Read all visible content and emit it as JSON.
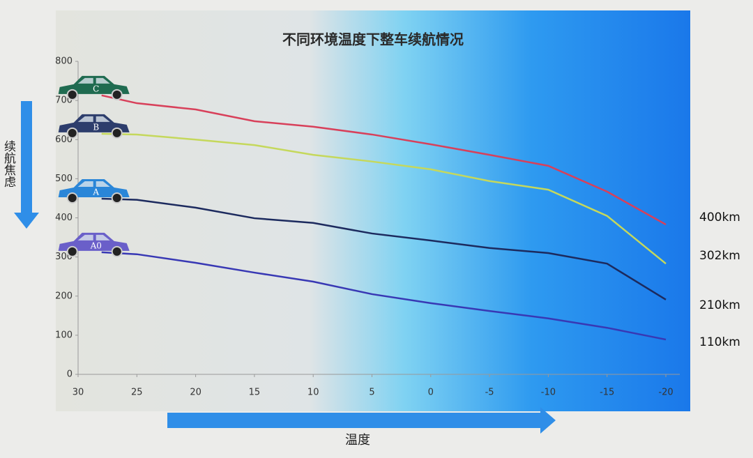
{
  "chart_data": {
    "type": "line",
    "title": "不同环境温度下整车续航情况",
    "x_label": "温度",
    "y_label": "续航焦虑",
    "x": [
      28,
      25,
      20,
      15,
      10,
      5,
      0,
      -5,
      -10,
      -15,
      -20
    ],
    "xlim": [
      30,
      -20
    ],
    "xticks": [
      30,
      25,
      20,
      15,
      10,
      5,
      0,
      -5,
      -10,
      -15,
      -20
    ],
    "ylim": [
      0,
      800
    ],
    "yticks": [
      0,
      100,
      200,
      300,
      400,
      500,
      600,
      700,
      800
    ],
    "series": [
      {
        "name": "C",
        "color": "#d8405a",
        "car_color": "#1f6b50",
        "values": [
          713,
          693,
          677,
          647,
          633,
          613,
          588,
          561,
          533,
          467,
          383
        ]
      },
      {
        "name": "B",
        "color": "#c5d85c",
        "car_color": "#2d3d6c",
        "values": [
          615,
          613,
          600,
          586,
          561,
          544,
          524,
          494,
          472,
          405,
          283
        ]
      },
      {
        "name": "A",
        "color": "#1c2a5e",
        "car_color": "#2a86d8",
        "values": [
          449,
          446,
          426,
          399,
          387,
          360,
          342,
          323,
          310,
          283,
          191
        ]
      },
      {
        "name": "A0",
        "color": "#3838b4",
        "car_color": "#6a5fc9",
        "values": [
          312,
          307,
          285,
          260,
          237,
          205,
          182,
          162,
          143,
          119,
          89
        ]
      }
    ],
    "annotations": [
      "400km",
      "302km",
      "210km",
      "110km"
    ]
  }
}
